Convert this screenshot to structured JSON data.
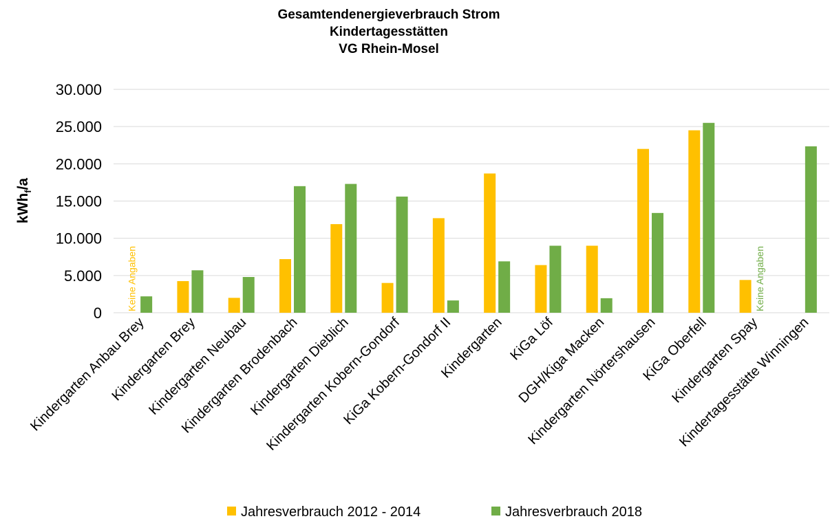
{
  "chart_data": {
    "type": "bar",
    "title": [
      "Gesamtendenergieverbrauch Strom",
      "Kindertagesstätten",
      "VG Rhein-Mosel"
    ],
    "ylabel": [
      "kWh",
      "f",
      "/a"
    ],
    "categories": [
      "Kindergarten Anbau Brey",
      "Kindergarten Brey",
      "Kindergarten Neubau",
      "Kindergarten Brodenbach",
      "Kindergarten Dieblich",
      "Kindergarten Kobern-Gondorf",
      "KiGa Kobern-Gondorf II",
      "Kindergarten",
      "KiGa Löf",
      "DGH/Kiga Macken",
      "Kindergarten Nörtershausen",
      "KiGa Oberfell",
      "Kindergarten Spay",
      "Kindertagesstätte Winningen"
    ],
    "series": [
      {
        "name": "Jahresverbrauch 2012 - 2014",
        "color": "#ffc000",
        "values": [
          null,
          4250,
          2000,
          7200,
          11900,
          4000,
          12700,
          18700,
          6400,
          9000,
          22000,
          24500,
          4400,
          null
        ]
      },
      {
        "name": "Jahresverbrauch 2018",
        "color": "#70ad47",
        "values": [
          2200,
          5700,
          4800,
          17000,
          17300,
          15600,
          1650,
          6900,
          9000,
          1950,
          13400,
          25500,
          null,
          22350
        ]
      }
    ],
    "annotations": [
      {
        "text": "Keine Angaben",
        "category": 0,
        "series": 0
      },
      {
        "text": "Keine Angaben",
        "category": 12,
        "series": 1
      }
    ],
    "ylim": [
      0,
      30000
    ],
    "yticks": [
      0,
      {
        "value": 5000,
        "label": "5.000"
      },
      {
        "value": 10000,
        "label": "10.000"
      },
      {
        "value": 15000,
        "label": "15.000"
      },
      {
        "value": 20000,
        "label": "20.000"
      },
      {
        "value": 25000,
        "label": "25.000"
      },
      {
        "value": 30000,
        "label": "30.000"
      }
    ],
    "grid": true,
    "legend": "bottom"
  }
}
